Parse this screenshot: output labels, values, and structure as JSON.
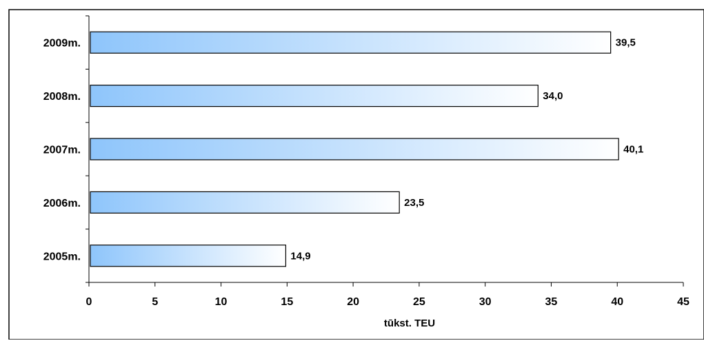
{
  "chart_data": {
    "type": "bar",
    "orientation": "horizontal",
    "title": "",
    "xlabel": "tūkst. TEU",
    "ylabel": "",
    "xlim": [
      0,
      45
    ],
    "x_ticks": [
      0,
      5,
      10,
      15,
      20,
      25,
      30,
      35,
      40,
      45
    ],
    "categories": [
      "2009m.",
      "2008m.",
      "2007m.",
      "2006m.",
      "2005m."
    ],
    "values": [
      39.5,
      34.0,
      40.1,
      23.5,
      14.9
    ],
    "data_labels": [
      "39,5",
      "34,0",
      "40,1",
      "23,5",
      "14,9"
    ],
    "grid": false,
    "legend": "none",
    "bar_fill_start": "#8ec5fb",
    "bar_fill_end": "#ffffff",
    "bar_outline": "#000000"
  }
}
